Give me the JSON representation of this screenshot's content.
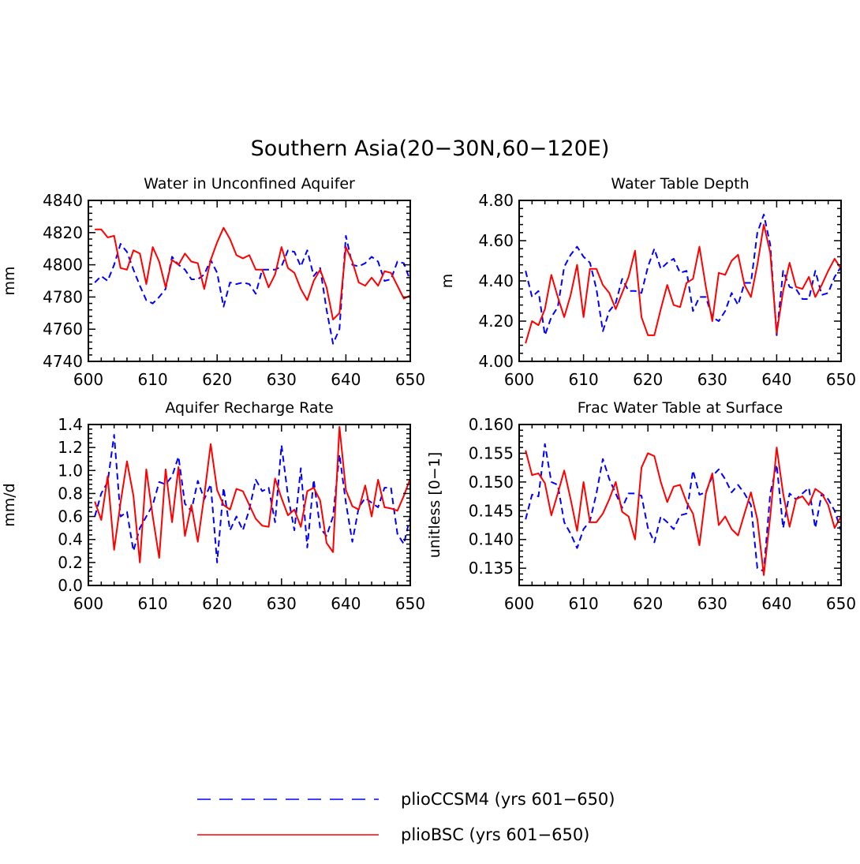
{
  "title": "Southern Asia(20−30N,60−120E)",
  "legend": {
    "placement": "bottom-center",
    "entries": [
      {
        "label": "plioCCSM4 (yrs 601−650)",
        "color": "#0000ff",
        "style": "dashed"
      },
      {
        "label": "plioBSC (yrs 601−650)",
        "color": "#ff0000",
        "style": "solid"
      }
    ]
  },
  "chart_data": [
    {
      "type": "line",
      "title": "Water in Unconfined Aquifer",
      "xlabel": "",
      "ylabel": "mm",
      "xlim": [
        600,
        650
      ],
      "ylim": [
        4740,
        4840
      ],
      "xticks": [
        "600",
        "610",
        "620",
        "630",
        "640",
        "650"
      ],
      "yticks": [
        "4740",
        "4760",
        "4780",
        "4800",
        "4820",
        "4840"
      ],
      "x": [
        601,
        602,
        603,
        604,
        605,
        606,
        607,
        608,
        609,
        610,
        611,
        612,
        613,
        614,
        615,
        616,
        617,
        618,
        619,
        620,
        621,
        622,
        623,
        624,
        625,
        626,
        627,
        628,
        629,
        630,
        631,
        632,
        633,
        634,
        635,
        636,
        637,
        638,
        639,
        640,
        641,
        642,
        643,
        644,
        645,
        646,
        647,
        648,
        649,
        650
      ],
      "series": [
        {
          "name": "plioCCSM4 (yrs 601−650)",
          "color": "#0000ff",
          "dash": true,
          "values": [
            4789,
            4793,
            4790,
            4800,
            4813,
            4808,
            4797,
            4787,
            4778,
            4776,
            4780,
            4785,
            4805,
            4800,
            4797,
            4791,
            4791,
            4794,
            4803,
            4795,
            4774,
            4789,
            4788,
            4789,
            4788,
            4782,
            4797,
            4797,
            4797,
            4799,
            4809,
            4808,
            4799,
            4809,
            4793,
            4798,
            4772,
            4751,
            4760,
            4818,
            4800,
            4799,
            4801,
            4805,
            4802,
            4790,
            4791,
            4802,
            4801,
            4790
          ]
        },
        {
          "name": "plioBSC (yrs 601−650)",
          "color": "#ff0000",
          "dash": false,
          "values": [
            4822,
            4822,
            4817,
            4818,
            4798,
            4797,
            4809,
            4807,
            4788,
            4811,
            4802,
            4786,
            4803,
            4800,
            4807,
            4802,
            4801,
            4785,
            4803,
            4814,
            4823,
            4816,
            4806,
            4804,
            4806,
            4797,
            4797,
            4786,
            4794,
            4811,
            4798,
            4795,
            4785,
            4778,
            4790,
            4797,
            4786,
            4766,
            4770,
            4811,
            4802,
            4789,
            4787,
            4792,
            4787,
            4796,
            4795,
            4787,
            4779,
            4781
          ]
        }
      ]
    },
    {
      "type": "line",
      "title": "Water Table Depth",
      "xlabel": "",
      "ylabel": "m",
      "xlim": [
        600,
        650
      ],
      "ylim": [
        4.0,
        4.8
      ],
      "xticks": [
        "600",
        "610",
        "620",
        "630",
        "640",
        "650"
      ],
      "yticks": [
        "4.00",
        "4.20",
        "4.40",
        "4.60",
        "4.80"
      ],
      "x": [
        601,
        602,
        603,
        604,
        605,
        606,
        607,
        608,
        609,
        610,
        611,
        612,
        613,
        614,
        615,
        616,
        617,
        618,
        619,
        620,
        621,
        622,
        623,
        624,
        625,
        626,
        627,
        628,
        629,
        630,
        631,
        632,
        633,
        634,
        635,
        636,
        637,
        638,
        639,
        640,
        641,
        642,
        643,
        644,
        645,
        646,
        647,
        648,
        649,
        650
      ],
      "series": [
        {
          "name": "plioCCSM4 (yrs 601−650)",
          "color": "#0000ff",
          "dash": true,
          "values": [
            4.45,
            4.32,
            4.35,
            4.13,
            4.22,
            4.27,
            4.47,
            4.53,
            4.57,
            4.52,
            4.49,
            4.36,
            4.15,
            4.25,
            4.29,
            4.41,
            4.35,
            4.35,
            4.34,
            4.47,
            4.56,
            4.46,
            4.49,
            4.51,
            4.44,
            4.45,
            4.25,
            4.32,
            4.32,
            4.22,
            4.2,
            4.25,
            4.34,
            4.28,
            4.39,
            4.39,
            4.64,
            4.73,
            4.58,
            4.13,
            4.45,
            4.37,
            4.36,
            4.31,
            4.31,
            4.45,
            4.33,
            4.34,
            4.42,
            4.47
          ]
        },
        {
          "name": "plioBSC (yrs 601−650)",
          "color": "#ff0000",
          "dash": false,
          "values": [
            4.09,
            4.2,
            4.18,
            4.26,
            4.43,
            4.32,
            4.22,
            4.33,
            4.48,
            4.22,
            4.46,
            4.46,
            4.38,
            4.34,
            4.26,
            4.34,
            4.42,
            4.55,
            4.22,
            4.13,
            4.13,
            4.26,
            4.38,
            4.28,
            4.27,
            4.39,
            4.41,
            4.57,
            4.37,
            4.2,
            4.44,
            4.43,
            4.5,
            4.53,
            4.38,
            4.32,
            4.48,
            4.68,
            4.54,
            4.14,
            4.35,
            4.49,
            4.37,
            4.36,
            4.42,
            4.32,
            4.38,
            4.45,
            4.51,
            4.46
          ]
        }
      ]
    },
    {
      "type": "line",
      "title": "Aquifer Recharge Rate",
      "xlabel": "",
      "ylabel": "mm/d",
      "xlim": [
        600,
        650
      ],
      "ylim": [
        0.0,
        1.4
      ],
      "xticks": [
        "600",
        "610",
        "620",
        "630",
        "640",
        "650"
      ],
      "yticks": [
        "0.0",
        "0.2",
        "0.4",
        "0.6",
        "0.8",
        "1.0",
        "1.2",
        "1.4"
      ],
      "x": [
        601,
        602,
        603,
        604,
        605,
        606,
        607,
        608,
        609,
        610,
        611,
        612,
        613,
        614,
        615,
        616,
        617,
        618,
        619,
        620,
        621,
        622,
        623,
        624,
        625,
        626,
        627,
        628,
        629,
        630,
        631,
        632,
        633,
        634,
        635,
        636,
        637,
        638,
        639,
        640,
        641,
        642,
        643,
        644,
        645,
        646,
        647,
        648,
        649,
        650
      ],
      "series": [
        {
          "name": "plioCCSM4 (yrs 601−650)",
          "color": "#0000ff",
          "dash": true,
          "values": [
            0.6,
            0.8,
            0.9,
            1.31,
            0.6,
            0.64,
            0.3,
            0.5,
            0.6,
            0.7,
            0.9,
            0.88,
            0.95,
            1.12,
            0.71,
            0.65,
            0.91,
            0.75,
            0.88,
            0.2,
            0.85,
            0.48,
            0.6,
            0.48,
            0.66,
            0.92,
            0.82,
            0.85,
            0.55,
            1.22,
            0.78,
            0.48,
            1.02,
            0.33,
            0.92,
            0.5,
            0.43,
            0.6,
            1.14,
            0.72,
            0.38,
            0.68,
            0.76,
            0.72,
            0.68,
            0.85,
            0.85,
            0.45,
            0.36,
            0.6
          ]
        },
        {
          "name": "plioBSC (yrs 601−650)",
          "color": "#ff0000",
          "dash": false,
          "values": [
            0.73,
            0.57,
            0.95,
            0.31,
            0.72,
            1.08,
            0.78,
            0.2,
            1.01,
            0.6,
            0.24,
            1.01,
            0.55,
            1.03,
            0.43,
            0.7,
            0.38,
            0.78,
            1.23,
            0.83,
            0.7,
            0.66,
            0.84,
            0.82,
            0.7,
            0.58,
            0.52,
            0.51,
            0.93,
            0.76,
            0.61,
            0.66,
            0.51,
            0.82,
            0.85,
            0.74,
            0.37,
            0.29,
            1.38,
            0.83,
            0.69,
            0.66,
            0.87,
            0.6,
            0.92,
            0.68,
            0.67,
            0.65,
            0.78,
            0.93
          ]
        }
      ]
    },
    {
      "type": "line",
      "title": "Frac Water Table at Surface",
      "xlabel": "",
      "ylabel": "unitless [0−1]",
      "xlim": [
        600,
        650
      ],
      "ylim": [
        0.132,
        0.16
      ],
      "xticks": [
        "600",
        "610",
        "620",
        "630",
        "640",
        "650"
      ],
      "yticks": [
        "0.135",
        "0.140",
        "0.145",
        "0.150",
        "0.155",
        "0.160"
      ],
      "x": [
        601,
        602,
        603,
        604,
        605,
        606,
        607,
        608,
        609,
        610,
        611,
        612,
        613,
        614,
        615,
        616,
        617,
        618,
        619,
        620,
        621,
        622,
        623,
        624,
        625,
        626,
        627,
        628,
        629,
        630,
        631,
        632,
        633,
        634,
        635,
        636,
        637,
        638,
        639,
        640,
        641,
        642,
        643,
        644,
        645,
        646,
        647,
        648,
        649,
        650
      ],
      "series": [
        {
          "name": "plioCCSM4 (yrs 601−650)",
          "color": "#0000ff",
          "dash": true,
          "values": [
            0.1435,
            0.1478,
            0.1475,
            0.1566,
            0.15,
            0.1495,
            0.143,
            0.141,
            0.1385,
            0.1418,
            0.1432,
            0.148,
            0.154,
            0.1505,
            0.148,
            0.1455,
            0.148,
            0.148,
            0.1476,
            0.142,
            0.1395,
            0.144,
            0.143,
            0.1418,
            0.1442,
            0.1445,
            0.152,
            0.1478,
            0.1482,
            0.151,
            0.1522,
            0.1505,
            0.1482,
            0.1495,
            0.148,
            0.146,
            0.135,
            0.1345,
            0.148,
            0.153,
            0.142,
            0.148,
            0.147,
            0.148,
            0.149,
            0.142,
            0.148,
            0.147,
            0.145,
            0.1415
          ]
        },
        {
          "name": "plioBSC (yrs 601−650)",
          "color": "#ff0000",
          "dash": false,
          "values": [
            0.1555,
            0.1512,
            0.1515,
            0.1498,
            0.1442,
            0.148,
            0.152,
            0.147,
            0.1415,
            0.15,
            0.143,
            0.143,
            0.1445,
            0.147,
            0.15,
            0.1448,
            0.144,
            0.14,
            0.1525,
            0.155,
            0.1545,
            0.15,
            0.1465,
            0.1492,
            0.1495,
            0.1465,
            0.1445,
            0.139,
            0.148,
            0.1515,
            0.1425,
            0.144,
            0.1418,
            0.1407,
            0.1445,
            0.1482,
            0.1435,
            0.1338,
            0.144,
            0.156,
            0.148,
            0.1422,
            0.147,
            0.1475,
            0.146,
            0.1488,
            0.148,
            0.146,
            0.142,
            0.144
          ]
        }
      ]
    }
  ]
}
